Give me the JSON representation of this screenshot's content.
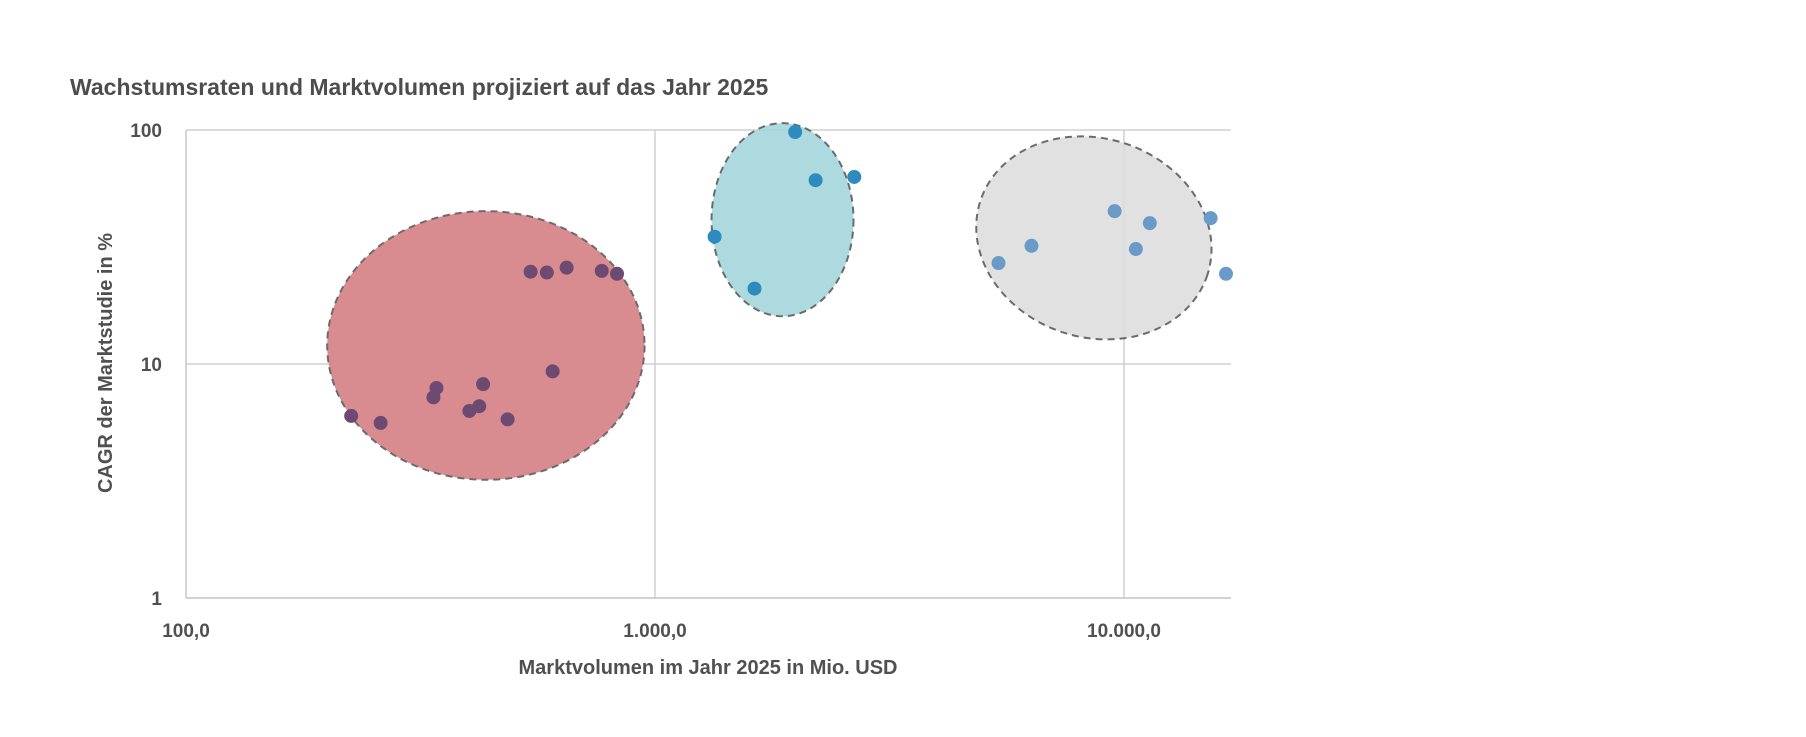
{
  "chart_data": {
    "type": "scatter",
    "title": "Wachstumsraten und Marktvolumen projiziert auf das Jahr 2025",
    "xlabel": "Marktvolumen im Jahr 2025 in Mio. USD",
    "ylabel": "CAGR der Marktstudie in %",
    "x_scale": "log",
    "y_scale": "log",
    "xlim": [
      100,
      16500
    ],
    "ylim": [
      1,
      100
    ],
    "x_ticks": [
      {
        "value": 100,
        "label": "100,0"
      },
      {
        "value": 1000,
        "label": "1.000,0"
      },
      {
        "value": 10000,
        "label": "10.000,0"
      }
    ],
    "y_ticks": [
      {
        "value": 1,
        "label": "1"
      },
      {
        "value": 10,
        "label": "10"
      },
      {
        "value": 100,
        "label": "100"
      }
    ],
    "grid": true,
    "legend": "none",
    "clusters": [
      {
        "center": [
          430,
          12
        ],
        "x_range": [
          200,
          950
        ],
        "y_range": [
          3.2,
          45
        ],
        "fill": "#d98c8f",
        "fill_opacity": 1
      },
      {
        "center": [
          1950,
          42
        ],
        "x_range": [
          1320,
          2650
        ],
        "y_range": [
          16,
          107
        ],
        "fill": "#9fd3d8",
        "fill_opacity": 0.85
      },
      {
        "center": [
          9200,
          38
        ],
        "x_range": [
          4800,
          15500
        ],
        "y_range": [
          13,
          92
        ],
        "fill": "#dcdcdc",
        "fill_opacity": 0.85
      }
    ],
    "series": [
      {
        "color": "#6e4a72",
        "points": [
          [
            225,
            6.0
          ],
          [
            260,
            5.6
          ],
          [
            337,
            7.2
          ],
          [
            342,
            7.9
          ],
          [
            402,
            6.3
          ],
          [
            422,
            6.6
          ],
          [
            430,
            8.2
          ],
          [
            485,
            5.8
          ],
          [
            543,
            24.8
          ],
          [
            588,
            24.6
          ],
          [
            605,
            9.3
          ],
          [
            648,
            25.8
          ],
          [
            770,
            25.0
          ],
          [
            830,
            24.3
          ]
        ]
      },
      {
        "color": "#2e8bc0",
        "points": [
          [
            1340,
            35
          ],
          [
            1630,
            21
          ],
          [
            1990,
            98
          ],
          [
            2200,
            61
          ],
          [
            2660,
            63
          ]
        ]
      },
      {
        "color": "#6a9bc8",
        "points": [
          [
            5400,
            27
          ],
          [
            6350,
            32
          ],
          [
            9550,
            45
          ],
          [
            10600,
            31
          ],
          [
            11350,
            40
          ],
          [
            15300,
            42
          ],
          [
            16500,
            24.3
          ]
        ]
      }
    ]
  }
}
